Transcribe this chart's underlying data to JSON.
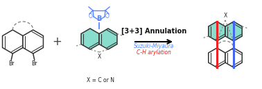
{
  "title": "[3+3] Annulation",
  "subtitle1": "Suzuki-Miyaura",
  "subtitle2": "C-H arylation",
  "subtitle1_color": "#5588ff",
  "subtitle2_color": "#ee2222",
  "ring_fill_teal": "#88ddcc",
  "ring_fill_white": "#ffffff",
  "ring_edge": "#333333",
  "bond_blue": "#4466ee",
  "bond_red": "#ee2222",
  "boron_blue": "#5588ff",
  "dashed_color": "#888888",
  "x_label": "X = C or N"
}
